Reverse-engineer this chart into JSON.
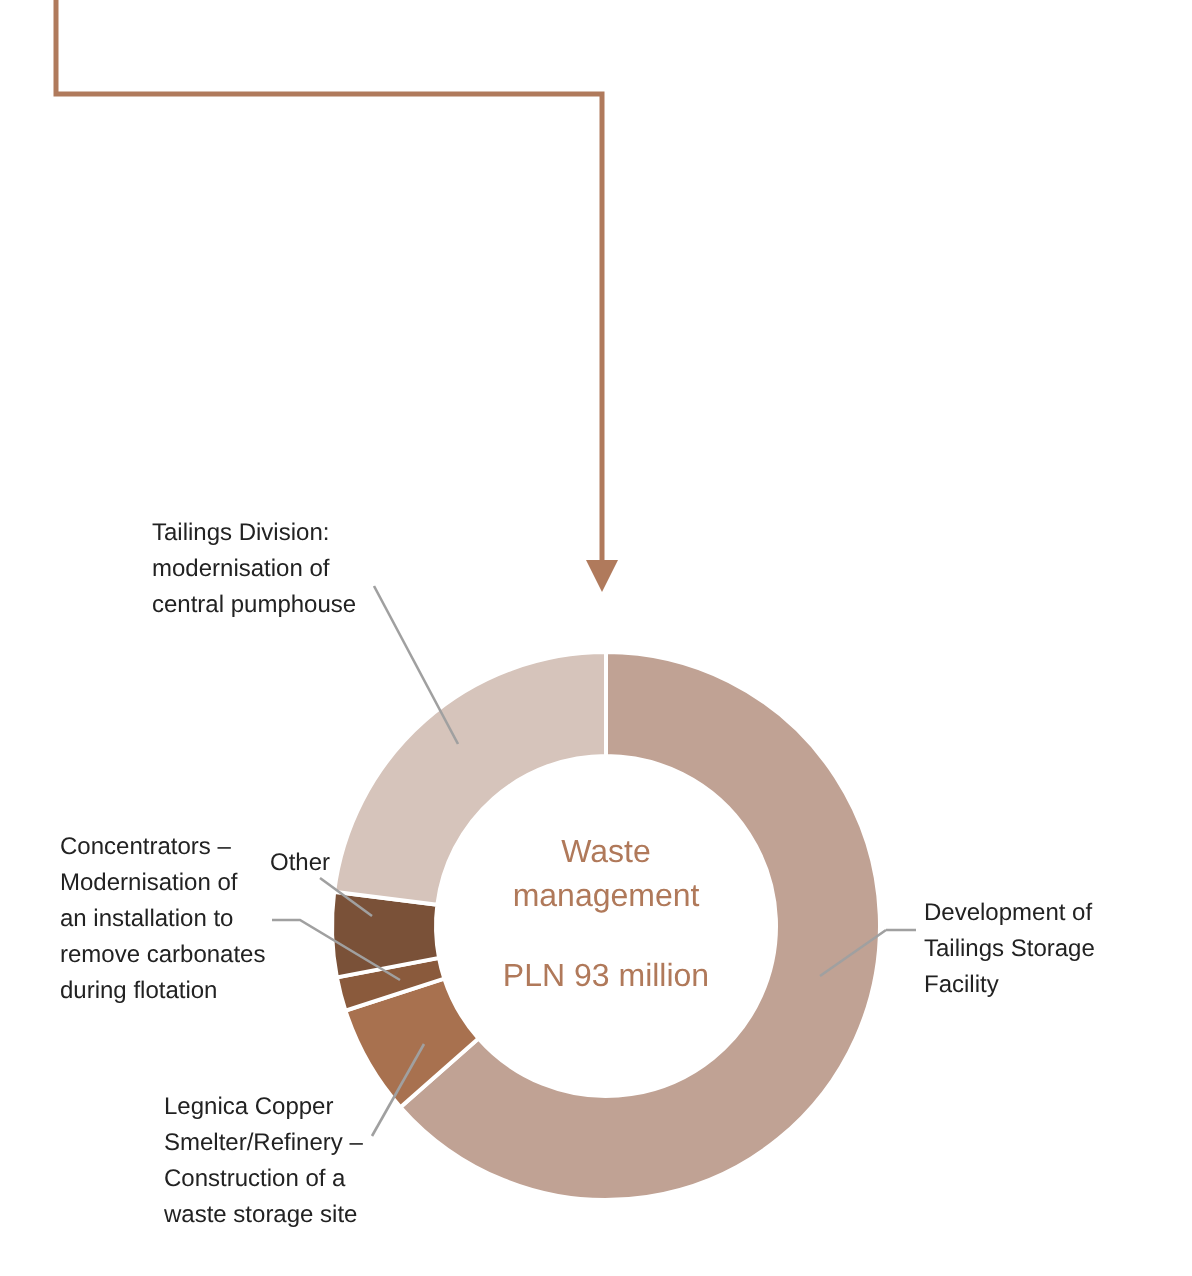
{
  "chart_data": {
    "type": "donut",
    "title": "Waste management",
    "subtitle": "PLN 93 million",
    "categories": [
      "Development of Tailings Storage Facility",
      "Legnica Copper Smelter/Refinery – Construction of a waste storage site",
      "Concentrators – Modernisation of an installation to remove carbonates during flotation",
      "Other",
      "Tailings Division: modernisation of central pumphouse"
    ],
    "values": [
      63.5,
      6.5,
      2,
      5,
      23
    ],
    "colors": [
      "#c0a294",
      "#a8714f",
      "#8a5a3c",
      "#7a5138",
      "#d6c4bb"
    ]
  }
}
